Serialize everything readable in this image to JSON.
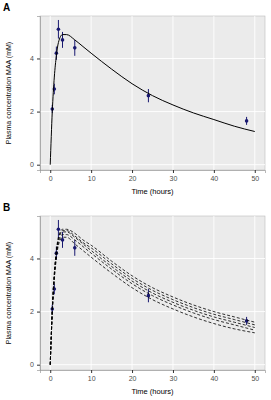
{
  "chart_data": [
    {
      "type": "line",
      "title": "A",
      "x_label": "Time (hours)",
      "y_label": "Plasma concentration MAA (mM)",
      "xlim": [
        -2.5,
        52.5
      ],
      "ylim": [
        -0.2,
        5.6
      ],
      "xticks": [
        0,
        10,
        20,
        30,
        40,
        50
      ],
      "yticks": [
        0,
        2,
        4
      ],
      "grid": true,
      "series": [
        {
          "type": "scatter",
          "color": "#191970",
          "marker": "circle",
          "x": [
            0.5,
            1,
            1.5,
            2,
            3,
            6,
            24,
            48
          ],
          "values": [
            2.1,
            2.85,
            4.2,
            5.1,
            4.7,
            4.4,
            2.6,
            1.65
          ],
          "errors": [
            0.15,
            0.2,
            0.25,
            0.35,
            0.3,
            0.3,
            0.25,
            0.15
          ]
        },
        {
          "type": "line",
          "color": "#000000",
          "line_style": "solid",
          "x": [
            0,
            0.5,
            1,
            1.5,
            2,
            3,
            4,
            6,
            8,
            10,
            15,
            20,
            25,
            30,
            35,
            40,
            45,
            50
          ],
          "values": [
            0,
            2.0,
            3.3,
            4.1,
            4.6,
            4.9,
            4.9,
            4.7,
            4.45,
            4.2,
            3.6,
            3.05,
            2.6,
            2.25,
            1.95,
            1.7,
            1.45,
            1.25
          ]
        }
      ]
    },
    {
      "type": "line",
      "title": "B",
      "x_label": "Time (hours)",
      "y_label": "Plasma concentration MAA (mM)",
      "xlim": [
        -2.5,
        52.5
      ],
      "ylim": [
        -0.2,
        5.6
      ],
      "xticks": [
        0,
        10,
        20,
        30,
        40,
        50
      ],
      "yticks": [
        0,
        2,
        4
      ],
      "grid": true,
      "series": [
        {
          "type": "scatter",
          "color": "#191970",
          "marker": "circle",
          "x": [
            0.5,
            1,
            1.5,
            2,
            3,
            6,
            24,
            48
          ],
          "values": [
            2.1,
            2.85,
            4.2,
            5.1,
            4.7,
            4.4,
            2.6,
            1.65
          ],
          "errors": [
            0.15,
            0.2,
            0.25,
            0.35,
            0.3,
            0.3,
            0.25,
            0.15
          ]
        },
        {
          "type": "line",
          "color": "#000000",
          "line_style": "dashed",
          "x": [
            0,
            0.5,
            1,
            1.5,
            2,
            3,
            4,
            6,
            8,
            10,
            15,
            20,
            25,
            30,
            35,
            40,
            45,
            50
          ],
          "values": [
            0,
            1.9,
            3.2,
            4.0,
            4.5,
            4.8,
            4.8,
            4.55,
            4.3,
            4.05,
            3.45,
            2.9,
            2.45,
            2.1,
            1.8,
            1.55,
            1.35,
            1.2
          ]
        },
        {
          "type": "line",
          "color": "#000000",
          "line_style": "dashed",
          "x": [
            0,
            0.5,
            1,
            1.5,
            2,
            3,
            4,
            6,
            8,
            10,
            15,
            20,
            25,
            30,
            35,
            40,
            45,
            50
          ],
          "values": [
            0,
            2.0,
            3.3,
            4.1,
            4.6,
            4.9,
            4.9,
            4.7,
            4.45,
            4.2,
            3.6,
            3.05,
            2.6,
            2.25,
            1.95,
            1.7,
            1.5,
            1.3
          ]
        },
        {
          "type": "line",
          "color": "#000000",
          "line_style": "dashed",
          "x": [
            0,
            0.5,
            1,
            1.5,
            2,
            3,
            4,
            6,
            8,
            10,
            15,
            20,
            25,
            30,
            35,
            40,
            45,
            50
          ],
          "values": [
            0,
            2.0,
            3.35,
            4.2,
            4.7,
            5.0,
            5.0,
            4.8,
            4.55,
            4.3,
            3.7,
            3.15,
            2.7,
            2.35,
            2.05,
            1.8,
            1.6,
            1.4
          ]
        },
        {
          "type": "line",
          "color": "#000000",
          "line_style": "dashed",
          "x": [
            0,
            0.5,
            1,
            1.5,
            2,
            3,
            4,
            6,
            8,
            10,
            15,
            20,
            25,
            30,
            35,
            40,
            45,
            50
          ],
          "values": [
            0,
            2.1,
            3.4,
            4.25,
            4.75,
            5.05,
            5.05,
            4.85,
            4.6,
            4.4,
            3.8,
            3.25,
            2.8,
            2.45,
            2.15,
            1.9,
            1.7,
            1.5
          ]
        },
        {
          "type": "line",
          "color": "#000000",
          "line_style": "dashed",
          "x": [
            0,
            0.5,
            1,
            1.5,
            2,
            3,
            4,
            6,
            8,
            10,
            15,
            20,
            25,
            30,
            35,
            40,
            45,
            50
          ],
          "values": [
            0,
            2.1,
            3.45,
            4.3,
            4.8,
            5.1,
            5.1,
            4.95,
            4.7,
            4.5,
            3.9,
            3.35,
            2.9,
            2.55,
            2.25,
            2.0,
            1.8,
            1.6
          ]
        }
      ]
    }
  ]
}
